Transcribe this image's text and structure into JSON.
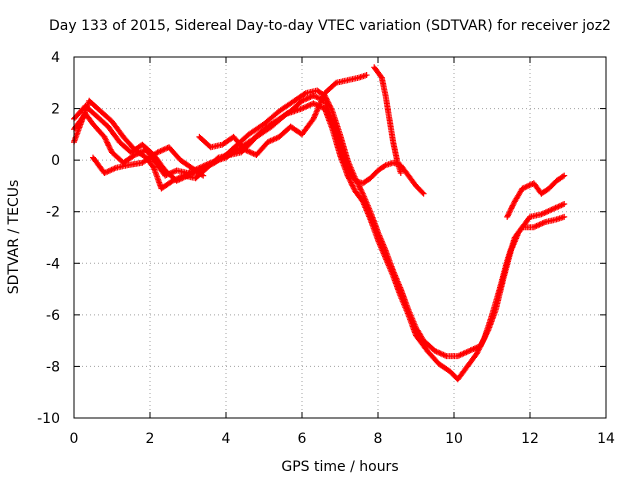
{
  "chart_data": {
    "type": "scatter",
    "title": "Day 133 of 2015, Sidereal Day-to-day VTEC variation (SDTVAR) for receiver joz2",
    "xlabel": "GPS time / hours",
    "ylabel": "SDTVAR / TECUs",
    "xlim": [
      0,
      14
    ],
    "ylim": [
      -10,
      4
    ],
    "xticks": [
      0,
      2,
      4,
      6,
      8,
      10,
      12,
      14
    ],
    "yticks": [
      -10,
      -8,
      -6,
      -4,
      -2,
      0,
      2,
      4
    ],
    "grid": true,
    "marker": "+",
    "marker_color": "#ff0000",
    "series": [
      {
        "name": "trace-1",
        "points": [
          [
            0.0,
            1.2
          ],
          [
            0.3,
            1.8
          ],
          [
            0.5,
            1.4
          ],
          [
            0.8,
            0.9
          ],
          [
            1.0,
            0.3
          ],
          [
            1.3,
            -0.1
          ],
          [
            1.6,
            0.2
          ],
          [
            1.9,
            0.4
          ],
          [
            2.1,
            0.0
          ],
          [
            2.4,
            -0.6
          ],
          [
            2.7,
            -0.4
          ],
          [
            3.0,
            -0.5
          ],
          [
            3.3,
            -0.3
          ],
          [
            3.6,
            -0.1
          ],
          [
            4.0,
            0.1
          ],
          [
            4.3,
            0.4
          ],
          [
            4.7,
            0.8
          ],
          [
            5.0,
            1.2
          ],
          [
            5.3,
            1.5
          ],
          [
            5.7,
            1.9
          ],
          [
            6.0,
            2.3
          ],
          [
            6.3,
            2.5
          ],
          [
            6.6,
            2.3
          ],
          [
            6.8,
            1.5
          ],
          [
            7.0,
            0.5
          ],
          [
            7.2,
            -0.3
          ],
          [
            7.4,
            -0.8
          ],
          [
            7.6,
            -0.9
          ],
          [
            7.8,
            -0.7
          ],
          [
            8.0,
            -0.4
          ],
          [
            8.2,
            -0.2
          ],
          [
            8.4,
            -0.1
          ],
          [
            8.6,
            -0.2
          ],
          [
            8.8,
            -0.6
          ],
          [
            9.0,
            -1.0
          ],
          [
            9.2,
            -1.3
          ]
        ]
      },
      {
        "name": "trace-2",
        "points": [
          [
            0.0,
            1.6
          ],
          [
            0.3,
            2.1
          ],
          [
            0.6,
            1.7
          ],
          [
            0.9,
            1.3
          ],
          [
            1.2,
            0.7
          ],
          [
            1.5,
            0.3
          ],
          [
            1.8,
            0.6
          ],
          [
            2.1,
            0.2
          ],
          [
            2.4,
            -0.4
          ],
          [
            2.7,
            -0.8
          ],
          [
            3.0,
            -0.6
          ],
          [
            3.3,
            -0.4
          ],
          [
            3.7,
            -0.1
          ],
          [
            4.0,
            0.2
          ],
          [
            4.3,
            0.6
          ],
          [
            4.6,
            1.0
          ],
          [
            5.0,
            1.4
          ],
          [
            5.4,
            1.9
          ],
          [
            5.8,
            2.3
          ],
          [
            6.1,
            2.6
          ],
          [
            6.4,
            2.7
          ],
          [
            6.6,
            2.5
          ],
          [
            6.8,
            1.9
          ],
          [
            7.0,
            1.0
          ],
          [
            7.2,
            0.0
          ],
          [
            7.4,
            -0.7
          ],
          [
            7.6,
            -1.3
          ],
          [
            7.8,
            -2.0
          ],
          [
            8.0,
            -2.8
          ],
          [
            8.2,
            -3.5
          ],
          [
            8.4,
            -4.3
          ],
          [
            8.6,
            -5.0
          ],
          [
            8.8,
            -5.8
          ],
          [
            9.0,
            -6.5
          ],
          [
            9.2,
            -7.0
          ],
          [
            9.5,
            -7.4
          ],
          [
            9.8,
            -7.6
          ],
          [
            10.1,
            -7.6
          ],
          [
            10.4,
            -7.4
          ],
          [
            10.7,
            -7.2
          ],
          [
            10.9,
            -6.6
          ],
          [
            11.1,
            -5.8
          ],
          [
            11.3,
            -4.6
          ],
          [
            11.5,
            -3.5
          ],
          [
            11.7,
            -2.8
          ],
          [
            12.0,
            -2.2
          ],
          [
            12.3,
            -2.1
          ],
          [
            12.6,
            -1.9
          ],
          [
            12.9,
            -1.7
          ]
        ]
      },
      {
        "name": "trace-3",
        "points": [
          [
            0.0,
            0.7
          ],
          [
            0.2,
            1.5
          ],
          [
            0.4,
            2.3
          ],
          [
            0.7,
            1.9
          ],
          [
            1.0,
            1.5
          ],
          [
            1.3,
            0.9
          ],
          [
            1.6,
            0.4
          ],
          [
            1.9,
            0.1
          ],
          [
            2.1,
            -0.3
          ],
          [
            2.3,
            -1.1
          ],
          [
            2.6,
            -0.8
          ],
          [
            2.9,
            -0.6
          ],
          [
            3.2,
            -0.7
          ],
          [
            3.5,
            -0.3
          ],
          [
            3.8,
            0.1
          ],
          [
            4.1,
            0.2
          ],
          [
            4.4,
            0.3
          ],
          [
            4.8,
            0.9
          ],
          [
            5.2,
            1.3
          ],
          [
            5.6,
            1.8
          ],
          [
            6.0,
            2.0
          ],
          [
            6.3,
            2.2
          ],
          [
            6.6,
            2.0
          ],
          [
            6.8,
            1.2
          ],
          [
            7.0,
            0.2
          ],
          [
            7.2,
            -0.6
          ],
          [
            7.4,
            -1.2
          ],
          [
            7.6,
            -1.6
          ],
          [
            7.8,
            -2.3
          ],
          [
            8.0,
            -3.1
          ],
          [
            8.2,
            -3.8
          ],
          [
            8.4,
            -4.5
          ],
          [
            8.6,
            -5.3
          ],
          [
            8.8,
            -6.0
          ],
          [
            9.0,
            -6.8
          ],
          [
            9.3,
            -7.4
          ],
          [
            9.6,
            -7.9
          ],
          [
            9.9,
            -8.2
          ],
          [
            10.1,
            -8.5
          ],
          [
            10.3,
            -8.1
          ],
          [
            10.6,
            -7.5
          ],
          [
            10.8,
            -6.9
          ],
          [
            11.0,
            -6.0
          ],
          [
            11.2,
            -5.0
          ],
          [
            11.4,
            -3.9
          ],
          [
            11.6,
            -3.0
          ],
          [
            11.8,
            -2.6
          ],
          [
            12.1,
            -2.6
          ],
          [
            12.4,
            -2.4
          ],
          [
            12.7,
            -2.3
          ],
          [
            12.9,
            -2.2
          ]
        ]
      },
      {
        "name": "trace-4",
        "points": [
          [
            0.5,
            0.1
          ],
          [
            0.8,
            -0.5
          ],
          [
            1.1,
            -0.3
          ],
          [
            1.4,
            -0.2
          ],
          [
            1.8,
            -0.1
          ],
          [
            2.2,
            0.3
          ],
          [
            2.5,
            0.5
          ],
          [
            2.8,
            0.0
          ],
          [
            3.1,
            -0.3
          ],
          [
            3.4,
            -0.6
          ]
        ]
      },
      {
        "name": "trace-5",
        "points": [
          [
            3.3,
            0.9
          ],
          [
            3.6,
            0.5
          ],
          [
            3.9,
            0.6
          ],
          [
            4.2,
            0.9
          ],
          [
            4.5,
            0.4
          ],
          [
            4.8,
            0.2
          ],
          [
            5.1,
            0.7
          ],
          [
            5.4,
            0.9
          ],
          [
            5.7,
            1.3
          ],
          [
            6.0,
            1.0
          ],
          [
            6.3,
            1.6
          ],
          [
            6.6,
            2.6
          ],
          [
            6.9,
            3.0
          ],
          [
            7.2,
            3.1
          ],
          [
            7.5,
            3.2
          ],
          [
            7.7,
            3.3
          ]
        ]
      },
      {
        "name": "trace-6",
        "points": [
          [
            7.9,
            3.6
          ],
          [
            8.1,
            3.2
          ],
          [
            8.2,
            2.5
          ],
          [
            8.3,
            1.6
          ],
          [
            8.4,
            0.7
          ],
          [
            8.5,
            0.0
          ],
          [
            8.6,
            -0.5
          ]
        ]
      },
      {
        "name": "trace-7",
        "points": [
          [
            11.4,
            -2.2
          ],
          [
            11.6,
            -1.6
          ],
          [
            11.8,
            -1.1
          ],
          [
            12.1,
            -0.9
          ],
          [
            12.3,
            -1.3
          ],
          [
            12.5,
            -1.1
          ],
          [
            12.7,
            -0.8
          ],
          [
            12.9,
            -0.6
          ]
        ]
      }
    ]
  }
}
